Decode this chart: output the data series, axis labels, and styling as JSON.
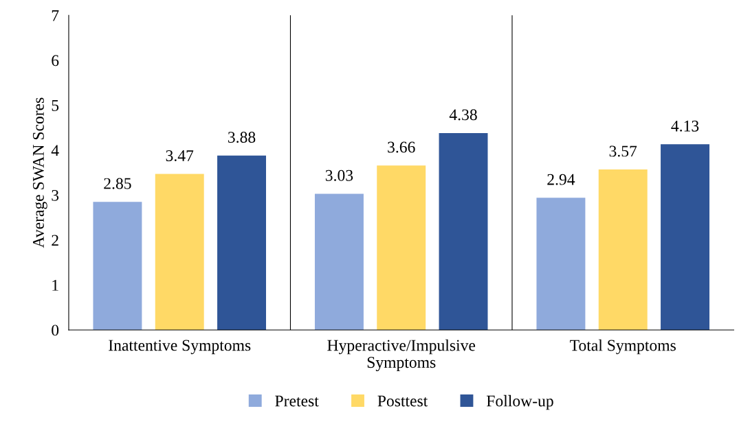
{
  "chart_data": {
    "type": "bar",
    "ylabel": "Average SWAN Scores",
    "categories": [
      "Inattentive Symptoms",
      "Hyperactive/Impulsive\nSymptoms",
      "Total Symptoms"
    ],
    "series": [
      {
        "name": "Pretest",
        "color": "#8faadc",
        "values": [
          2.85,
          3.03,
          2.94
        ]
      },
      {
        "name": "Posttest",
        "color": "#ffd966",
        "values": [
          3.47,
          3.66,
          3.57
        ]
      },
      {
        "name": "Follow-up",
        "color": "#2f5597",
        "values": [
          3.88,
          4.38,
          4.13
        ]
      }
    ],
    "ylim": [
      0,
      7
    ],
    "yticks": [
      0,
      1,
      2,
      3,
      4,
      5,
      6,
      7
    ],
    "data_labels": true,
    "grid": "x",
    "legend": "bottom"
  }
}
